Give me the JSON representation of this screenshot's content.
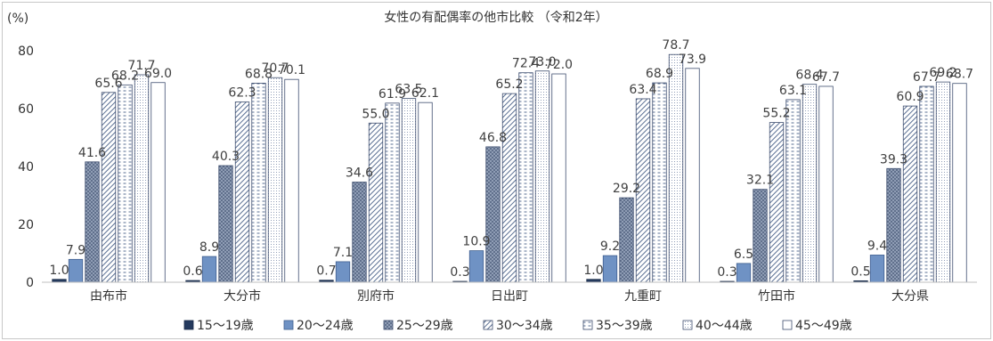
{
  "chart_data": {
    "type": "bar",
    "title": "女性の有配偶率の他市比較 （令和2年）",
    "ylabel": "(%)",
    "ylim": [
      0,
      80
    ],
    "yticks": [
      0,
      20,
      40,
      60,
      80
    ],
    "grid": false,
    "legend_position": "bottom",
    "categories": [
      "由布市",
      "大分市",
      "別府市",
      "日出町",
      "九重町",
      "竹田市",
      "大分県"
    ],
    "series": [
      {
        "name": "15～19歳",
        "values": [
          1.0,
          0.6,
          0.7,
          0.3,
          1.0,
          0.3,
          0.5
        ],
        "pattern": "solid-navy"
      },
      {
        "name": "20～24歳",
        "values": [
          7.9,
          8.9,
          7.1,
          10.9,
          9.2,
          6.5,
          9.4
        ],
        "pattern": "solid-blue"
      },
      {
        "name": "25～29歳",
        "values": [
          41.6,
          40.3,
          34.6,
          46.8,
          29.2,
          32.1,
          39.3
        ],
        "pattern": "dots"
      },
      {
        "name": "30～34歳",
        "values": [
          65.6,
          62.3,
          55.0,
          65.2,
          63.4,
          55.2,
          60.9
        ],
        "pattern": "diagonal"
      },
      {
        "name": "35～39歳",
        "values": [
          68.2,
          68.8,
          61.9,
          72.4,
          68.9,
          63.1,
          67.7
        ],
        "pattern": "dashes"
      },
      {
        "name": "40～44歳",
        "values": [
          71.7,
          70.7,
          63.5,
          73.0,
          78.7,
          68.4,
          69.2
        ],
        "pattern": "fine-dots"
      },
      {
        "name": "45～49歳",
        "values": [
          69.0,
          70.1,
          62.1,
          72.0,
          73.9,
          67.7,
          68.7
        ],
        "pattern": "white"
      }
    ]
  }
}
